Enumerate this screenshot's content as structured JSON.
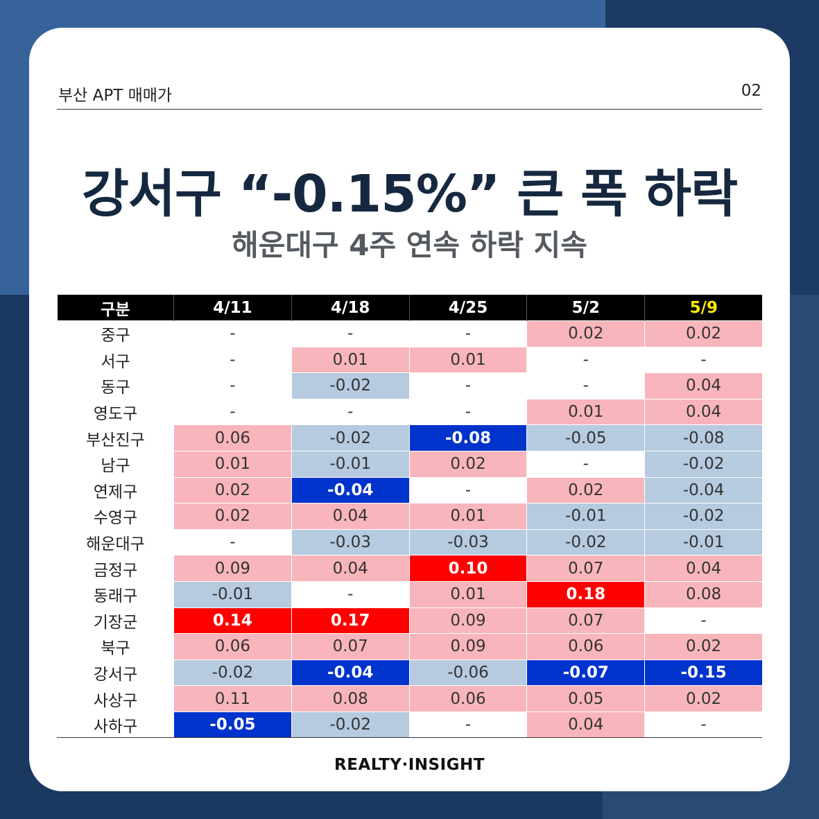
{
  "header": {
    "left_label": "부산 APT 매매가",
    "page_number": "02"
  },
  "title": "강서구 “-0.15%” 큰 폭 하락",
  "subtitle": "해운대구 4주 연속 하락 지속",
  "footer": {
    "brand": "REALTY·INSIGHT"
  },
  "colors": {
    "positive": "#f8b5bb",
    "negative": "#b6cae0",
    "strong_positive": "#ff0000",
    "strong_negative": "#0033cc",
    "latest_week_header": "#ffec00"
  },
  "chart_data": {
    "type": "table",
    "row_header_label": "구분",
    "columns": [
      "4/11",
      "4/18",
      "4/25",
      "5/2",
      "5/9"
    ],
    "highlight_column": "5/9",
    "rows": [
      {
        "district": "중구",
        "values": [
          "-",
          "-",
          "-",
          "0.02",
          "0.02"
        ]
      },
      {
        "district": "서구",
        "values": [
          "-",
          "0.01",
          "0.01",
          "-",
          "-"
        ]
      },
      {
        "district": "동구",
        "values": [
          "-",
          "-0.02",
          "-",
          "-",
          "0.04"
        ]
      },
      {
        "district": "영도구",
        "values": [
          "-",
          "-",
          "-",
          "0.01",
          "0.04"
        ]
      },
      {
        "district": "부산진구",
        "values": [
          "0.06",
          "-0.02",
          "-0.08",
          "-0.05",
          "-0.08"
        ]
      },
      {
        "district": "남구",
        "values": [
          "0.01",
          "-0.01",
          "0.02",
          "-",
          "-0.02"
        ]
      },
      {
        "district": "연제구",
        "values": [
          "0.02",
          "-0.04",
          "-",
          "0.02",
          "-0.04"
        ]
      },
      {
        "district": "수영구",
        "values": [
          "0.02",
          "0.04",
          "0.01",
          "-0.01",
          "-0.02"
        ]
      },
      {
        "district": "해운대구",
        "values": [
          "-",
          "-0.03",
          "-0.03",
          "-0.02",
          "-0.01"
        ]
      },
      {
        "district": "금정구",
        "values": [
          "0.09",
          "0.04",
          "0.10",
          "0.07",
          "0.04"
        ]
      },
      {
        "district": "동래구",
        "values": [
          "-0.01",
          "-",
          "0.01",
          "0.18",
          "0.08"
        ]
      },
      {
        "district": "기장군",
        "values": [
          "0.14",
          "0.17",
          "0.09",
          "0.07",
          "-"
        ]
      },
      {
        "district": "북구",
        "values": [
          "0.06",
          "0.07",
          "0.09",
          "0.06",
          "0.02"
        ]
      },
      {
        "district": "강서구",
        "values": [
          "-0.02",
          "-0.04",
          "-0.06",
          "-0.07",
          "-0.15"
        ]
      },
      {
        "district": "사상구",
        "values": [
          "0.11",
          "0.08",
          "0.06",
          "0.05",
          "0.02"
        ]
      },
      {
        "district": "사하구",
        "values": [
          "-0.05",
          "-0.02",
          "-",
          "0.04",
          "-"
        ]
      }
    ],
    "strong_cells": [
      {
        "row": 4,
        "col": 2,
        "kind": "neg"
      },
      {
        "row": 6,
        "col": 1,
        "kind": "neg"
      },
      {
        "row": 9,
        "col": 2,
        "kind": "pos"
      },
      {
        "row": 10,
        "col": 3,
        "kind": "pos"
      },
      {
        "row": 11,
        "col": 0,
        "kind": "pos"
      },
      {
        "row": 11,
        "col": 1,
        "kind": "pos"
      },
      {
        "row": 13,
        "col": 1,
        "kind": "neg"
      },
      {
        "row": 13,
        "col": 3,
        "kind": "neg"
      },
      {
        "row": 13,
        "col": 4,
        "kind": "neg"
      },
      {
        "row": 15,
        "col": 0,
        "kind": "neg"
      }
    ]
  }
}
